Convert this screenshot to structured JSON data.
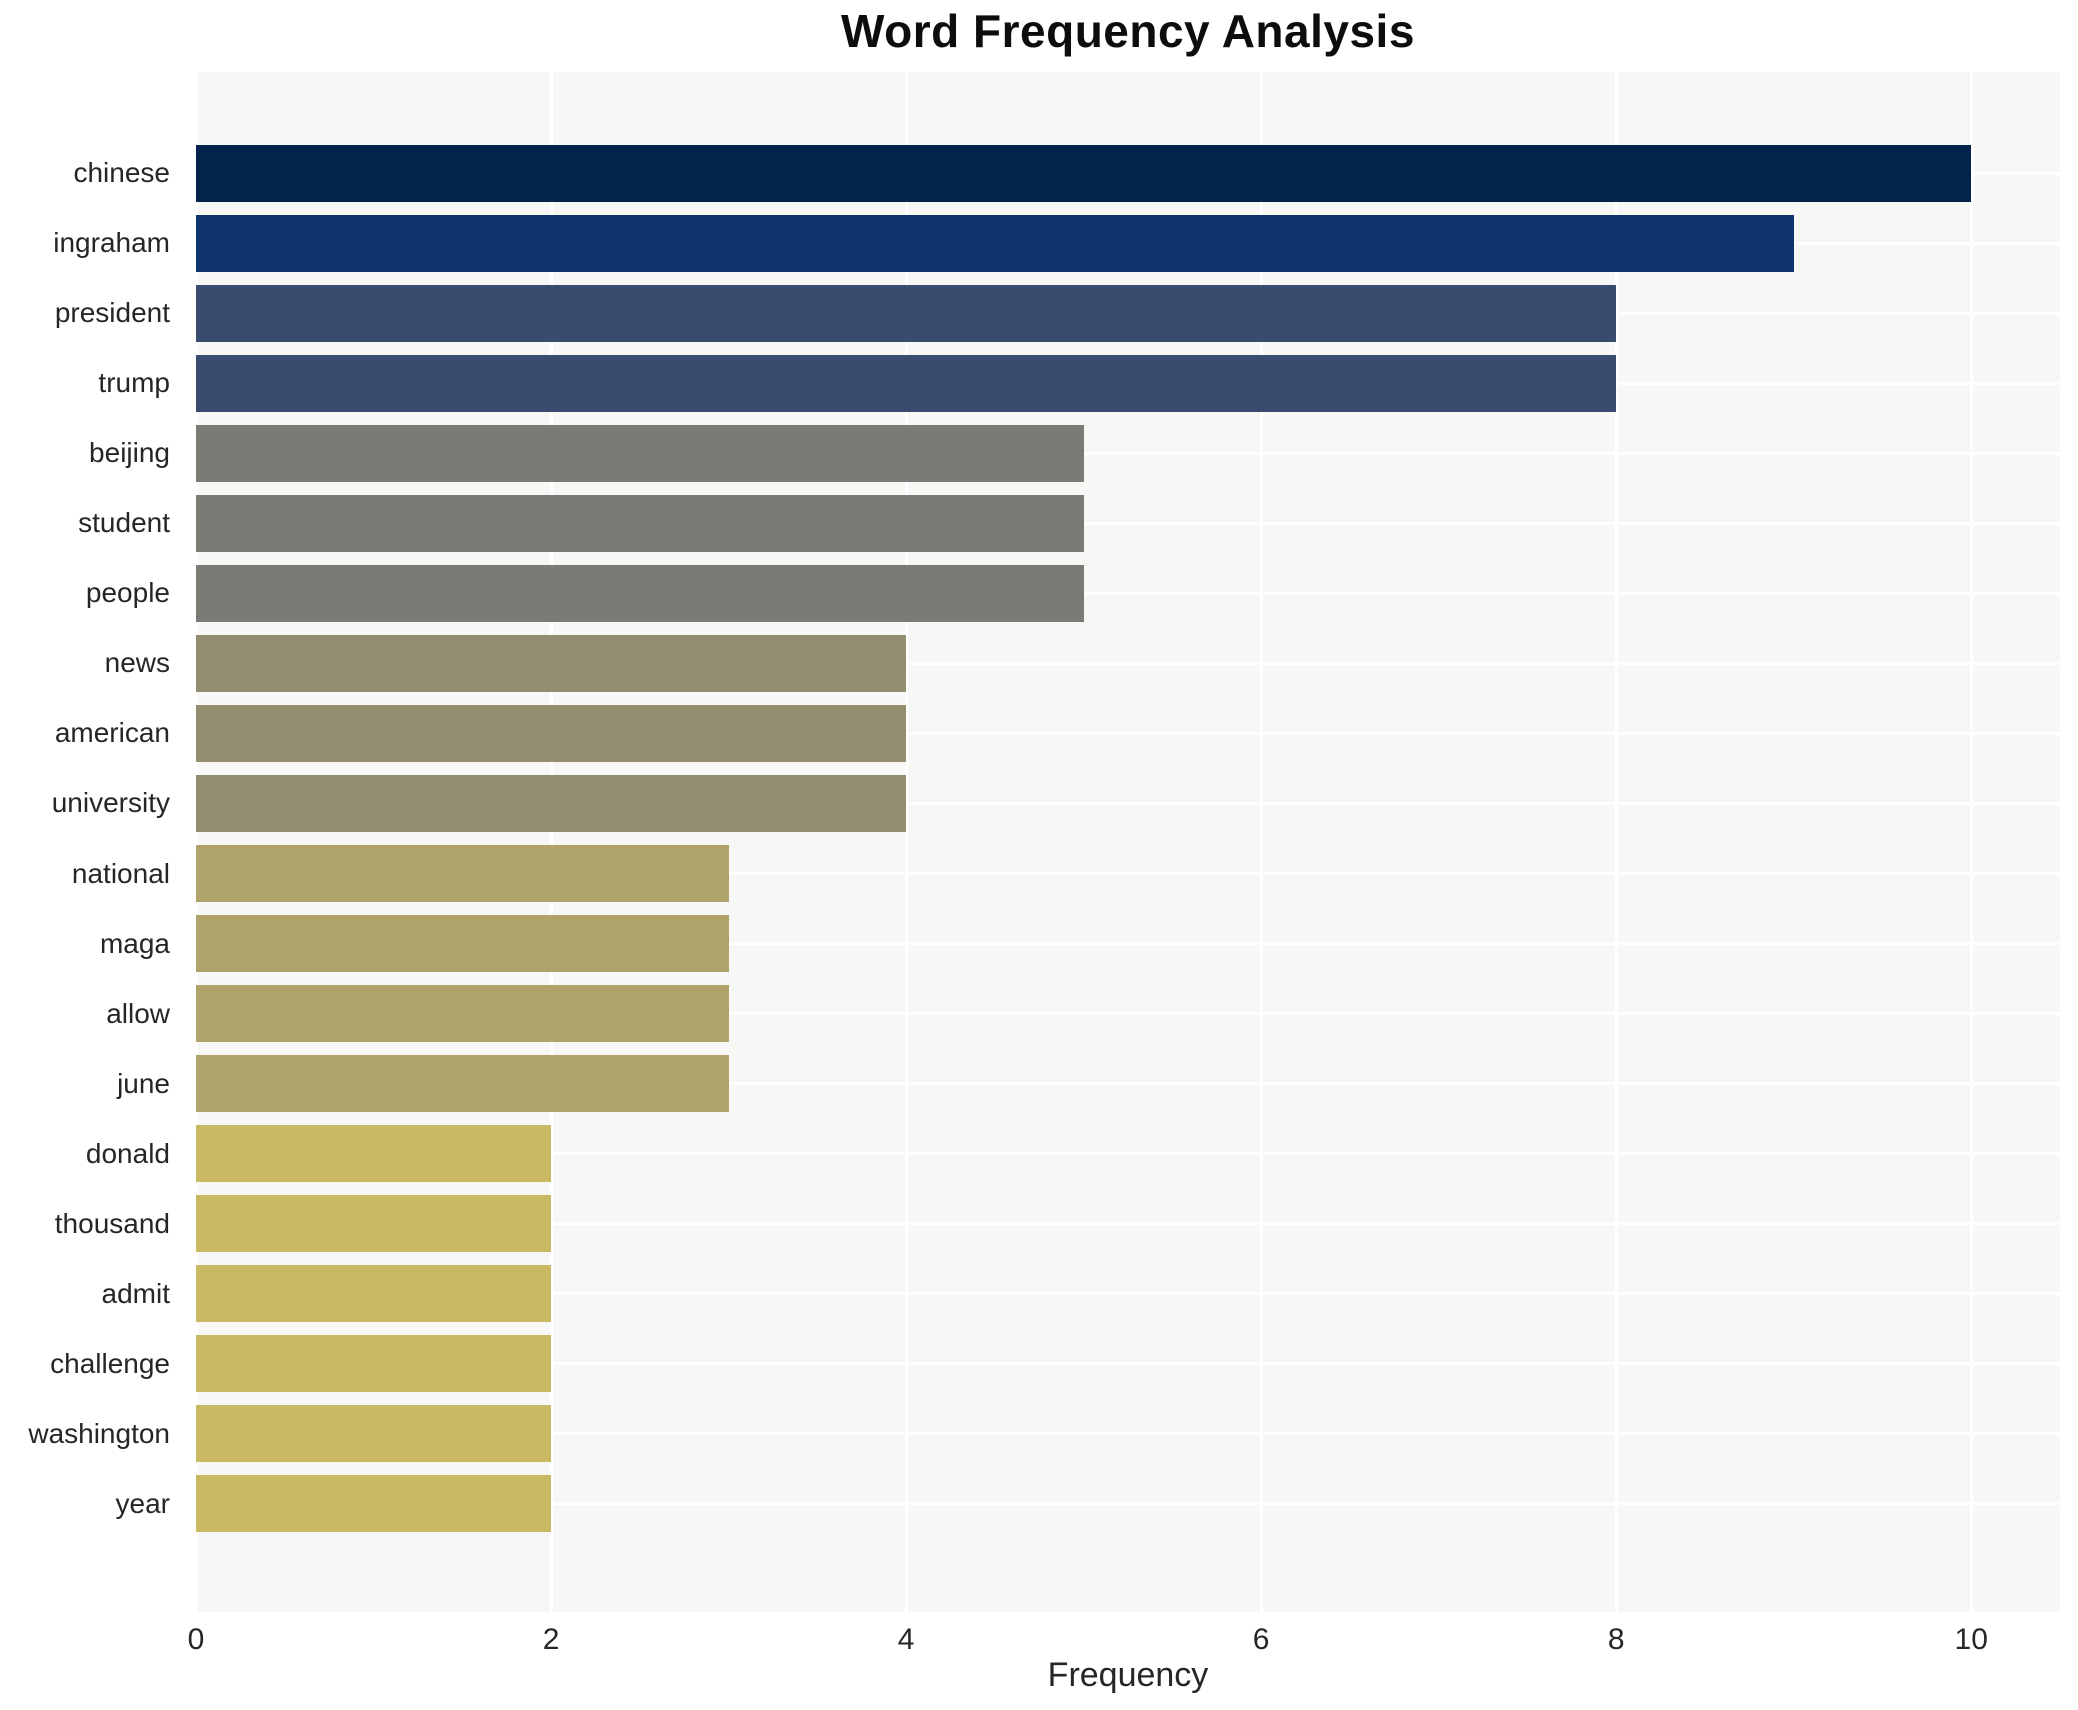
{
  "title": "Word Frequency Analysis",
  "chart_data": {
    "type": "bar",
    "orientation": "horizontal",
    "title": "Word Frequency Analysis",
    "xlabel": "Frequency",
    "ylabel": "",
    "categories": [
      "chinese",
      "ingraham",
      "president",
      "trump",
      "beijing",
      "student",
      "people",
      "news",
      "american",
      "university",
      "national",
      "maga",
      "allow",
      "june",
      "donald",
      "thousand",
      "admit",
      "challenge",
      "washington",
      "year"
    ],
    "values": [
      10,
      9,
      8,
      8,
      5,
      5,
      5,
      4,
      4,
      4,
      3,
      3,
      3,
      3,
      2,
      2,
      2,
      2,
      2,
      2
    ],
    "bar_colors": [
      "#03234d",
      "#0f336f",
      "#3a4b70",
      "#3a4b70",
      "#7b7a74",
      "#7b7a74",
      "#7b7a74",
      "#948e71",
      "#948e71",
      "#948e71",
      "#afa26b",
      "#afa26b",
      "#afa26b",
      "#afa26b",
      "#c9b963",
      "#c9b963",
      "#c9b963",
      "#c9b963",
      "#c9b963",
      "#c9b963"
    ],
    "xticks": [
      0,
      2,
      4,
      6,
      8,
      10
    ],
    "xlim": [
      0,
      10.5
    ],
    "grid": true,
    "legend": false,
    "plot_background": "#f7f7f6",
    "grid_color": "#ffffff",
    "tick_label_color": "#262626",
    "title_color": "#0d0d0d"
  }
}
